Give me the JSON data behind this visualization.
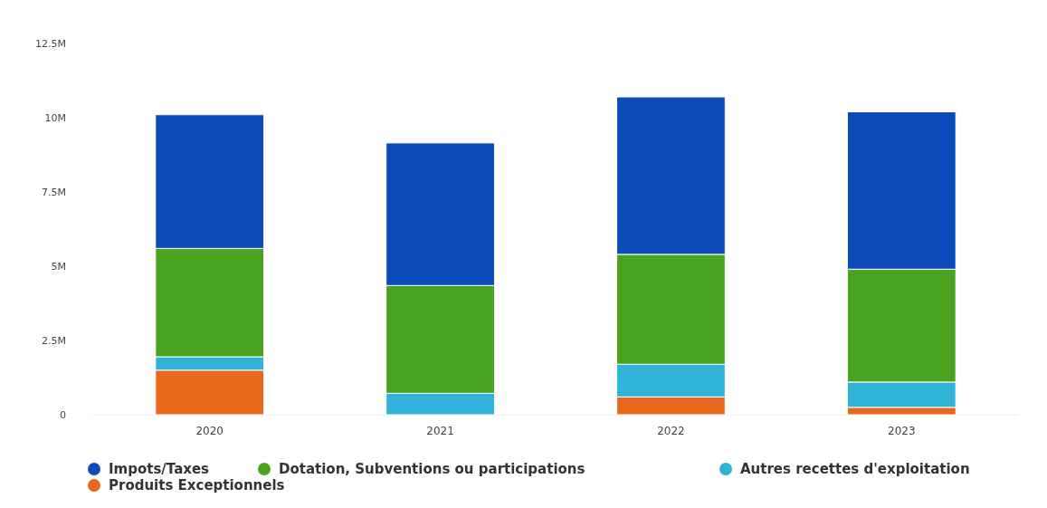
{
  "chart_data": {
    "type": "bar",
    "stacked": true,
    "categories": [
      "2020",
      "2021",
      "2022",
      "2023"
    ],
    "series": [
      {
        "name": "Produits Exceptionnels",
        "color": "#e8681e",
        "values": [
          1.5,
          0,
          0.6,
          0.25
        ]
      },
      {
        "name": "Autres recettes d'exploitation",
        "color": "#2fb3d9",
        "values": [
          0.45,
          0.72,
          1.1,
          0.85
        ]
      },
      {
        "name": "Dotation, Subventions ou participations",
        "color": "#4aa31e",
        "values": [
          3.65,
          3.63,
          3.7,
          3.8
        ]
      },
      {
        "name": "Impots/Taxes",
        "color": "#0a4bb8",
        "values": [
          4.5,
          4.8,
          5.3,
          5.3
        ]
      }
    ],
    "ylim": [
      0,
      12.5
    ],
    "yticks": [
      {
        "value": 0,
        "label": "0"
      },
      {
        "value": 2.5,
        "label": "2.5M"
      },
      {
        "value": 5,
        "label": "5M"
      },
      {
        "value": 7.5,
        "label": "7.5M"
      },
      {
        "value": 10,
        "label": "10M"
      },
      {
        "value": 12.5,
        "label": "12.5M"
      }
    ],
    "grid": false,
    "legend": "bottom",
    "marker": "circle"
  }
}
